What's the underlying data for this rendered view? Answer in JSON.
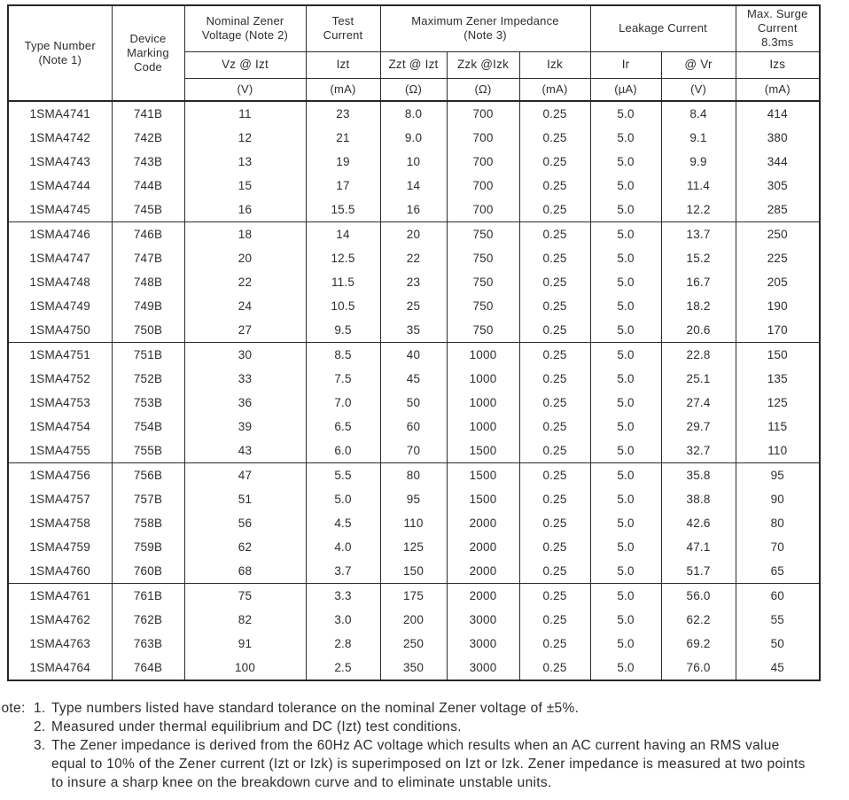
{
  "table": {
    "header": {
      "type_number": "Type Number\n(Note 1)",
      "device_marking": "Device\nMarking\nCode",
      "nominal_zener_voltage": "Nominal Zener\nVoltage (Note 2)",
      "test_current": "Test\nCurrent",
      "max_zener_impedance": "Maximum Zener Impedance\n(Note 3)",
      "leakage_current": "Leakage Current",
      "max_surge_current": "Max. Surge\nCurrent\n8.3ms",
      "sub": [
        "Vz @ Izt",
        "Izt",
        "Zzt @ Izt",
        "Zzk @Izk",
        "Izk",
        "Ir",
        "@ Vr",
        "Izs"
      ],
      "units": [
        "(V)",
        "(mA)",
        "(Ω)",
        "(Ω)",
        "(mA)",
        "(µA)",
        "(V)",
        "(mA)"
      ]
    },
    "row_groups": [
      [
        [
          "1SMA4741",
          "741B",
          "11",
          "23",
          "8.0",
          "700",
          "0.25",
          "5.0",
          "8.4",
          "414"
        ],
        [
          "1SMA4742",
          "742B",
          "12",
          "21",
          "9.0",
          "700",
          "0.25",
          "5.0",
          "9.1",
          "380"
        ],
        [
          "1SMA4743",
          "743B",
          "13",
          "19",
          "10",
          "700",
          "0.25",
          "5.0",
          "9.9",
          "344"
        ],
        [
          "1SMA4744",
          "744B",
          "15",
          "17",
          "14",
          "700",
          "0.25",
          "5.0",
          "11.4",
          "305"
        ],
        [
          "1SMA4745",
          "745B",
          "16",
          "15.5",
          "16",
          "700",
          "0.25",
          "5.0",
          "12.2",
          "285"
        ]
      ],
      [
        [
          "1SMA4746",
          "746B",
          "18",
          "14",
          "20",
          "750",
          "0.25",
          "5.0",
          "13.7",
          "250"
        ],
        [
          "1SMA4747",
          "747B",
          "20",
          "12.5",
          "22",
          "750",
          "0.25",
          "5.0",
          "15.2",
          "225"
        ],
        [
          "1SMA4748",
          "748B",
          "22",
          "11.5",
          "23",
          "750",
          "0.25",
          "5.0",
          "16.7",
          "205"
        ],
        [
          "1SMA4749",
          "749B",
          "24",
          "10.5",
          "25",
          "750",
          "0.25",
          "5.0",
          "18.2",
          "190"
        ],
        [
          "1SMA4750",
          "750B",
          "27",
          "9.5",
          "35",
          "750",
          "0.25",
          "5.0",
          "20.6",
          "170"
        ]
      ],
      [
        [
          "1SMA4751",
          "751B",
          "30",
          "8.5",
          "40",
          "1000",
          "0.25",
          "5.0",
          "22.8",
          "150"
        ],
        [
          "1SMA4752",
          "752B",
          "33",
          "7.5",
          "45",
          "1000",
          "0.25",
          "5.0",
          "25.1",
          "135"
        ],
        [
          "1SMA4753",
          "753B",
          "36",
          "7.0",
          "50",
          "1000",
          "0.25",
          "5.0",
          "27.4",
          "125"
        ],
        [
          "1SMA4754",
          "754B",
          "39",
          "6.5",
          "60",
          "1000",
          "0.25",
          "5.0",
          "29.7",
          "115"
        ],
        [
          "1SMA4755",
          "755B",
          "43",
          "6.0",
          "70",
          "1500",
          "0.25",
          "5.0",
          "32.7",
          "110"
        ]
      ],
      [
        [
          "1SMA4756",
          "756B",
          "47",
          "5.5",
          "80",
          "1500",
          "0.25",
          "5.0",
          "35.8",
          "95"
        ],
        [
          "1SMA4757",
          "757B",
          "51",
          "5.0",
          "95",
          "1500",
          "0.25",
          "5.0",
          "38.8",
          "90"
        ],
        [
          "1SMA4758",
          "758B",
          "56",
          "4.5",
          "110",
          "2000",
          "0.25",
          "5.0",
          "42.6",
          "80"
        ],
        [
          "1SMA4759",
          "759B",
          "62",
          "4.0",
          "125",
          "2000",
          "0.25",
          "5.0",
          "47.1",
          "70"
        ],
        [
          "1SMA4760",
          "760B",
          "68",
          "3.7",
          "150",
          "2000",
          "0.25",
          "5.0",
          "51.7",
          "65"
        ]
      ],
      [
        [
          "1SMA4761",
          "761B",
          "75",
          "3.3",
          "175",
          "2000",
          "0.25",
          "5.0",
          "56.0",
          "60"
        ],
        [
          "1SMA4762",
          "762B",
          "82",
          "3.0",
          "200",
          "3000",
          "0.25",
          "5.0",
          "62.2",
          "55"
        ],
        [
          "1SMA4763",
          "763B",
          "91",
          "2.8",
          "250",
          "3000",
          "0.25",
          "5.0",
          "69.2",
          "50"
        ],
        [
          "1SMA4764",
          "764B",
          "100",
          "2.5",
          "350",
          "3000",
          "0.25",
          "5.0",
          "76.0",
          "45"
        ]
      ]
    ]
  },
  "notes": {
    "label": "Note:",
    "items": [
      {
        "num": "1.",
        "lines": [
          "Type numbers listed have standard tolerance on the nominal Zener voltage of ±5%."
        ]
      },
      {
        "num": "2.",
        "lines": [
          "Measured under thermal equilibrium and DC (Izt) test conditions."
        ]
      },
      {
        "num": "3.",
        "lines": [
          "The Zener impedance is derived from the 60Hz AC voltage which results when an AC current having an RMS value",
          "equal to 10% of the Zener current (Izt or Izk) is superimposed on Izt or Izk. Zener impedance is measured at two points",
          "to insure a sharp knee on the breakdown curve and to eliminate unstable units."
        ]
      }
    ]
  },
  "colors": {
    "text": "#2d2d2d",
    "border": "#2c2c2c",
    "background": "#ffffff"
  }
}
